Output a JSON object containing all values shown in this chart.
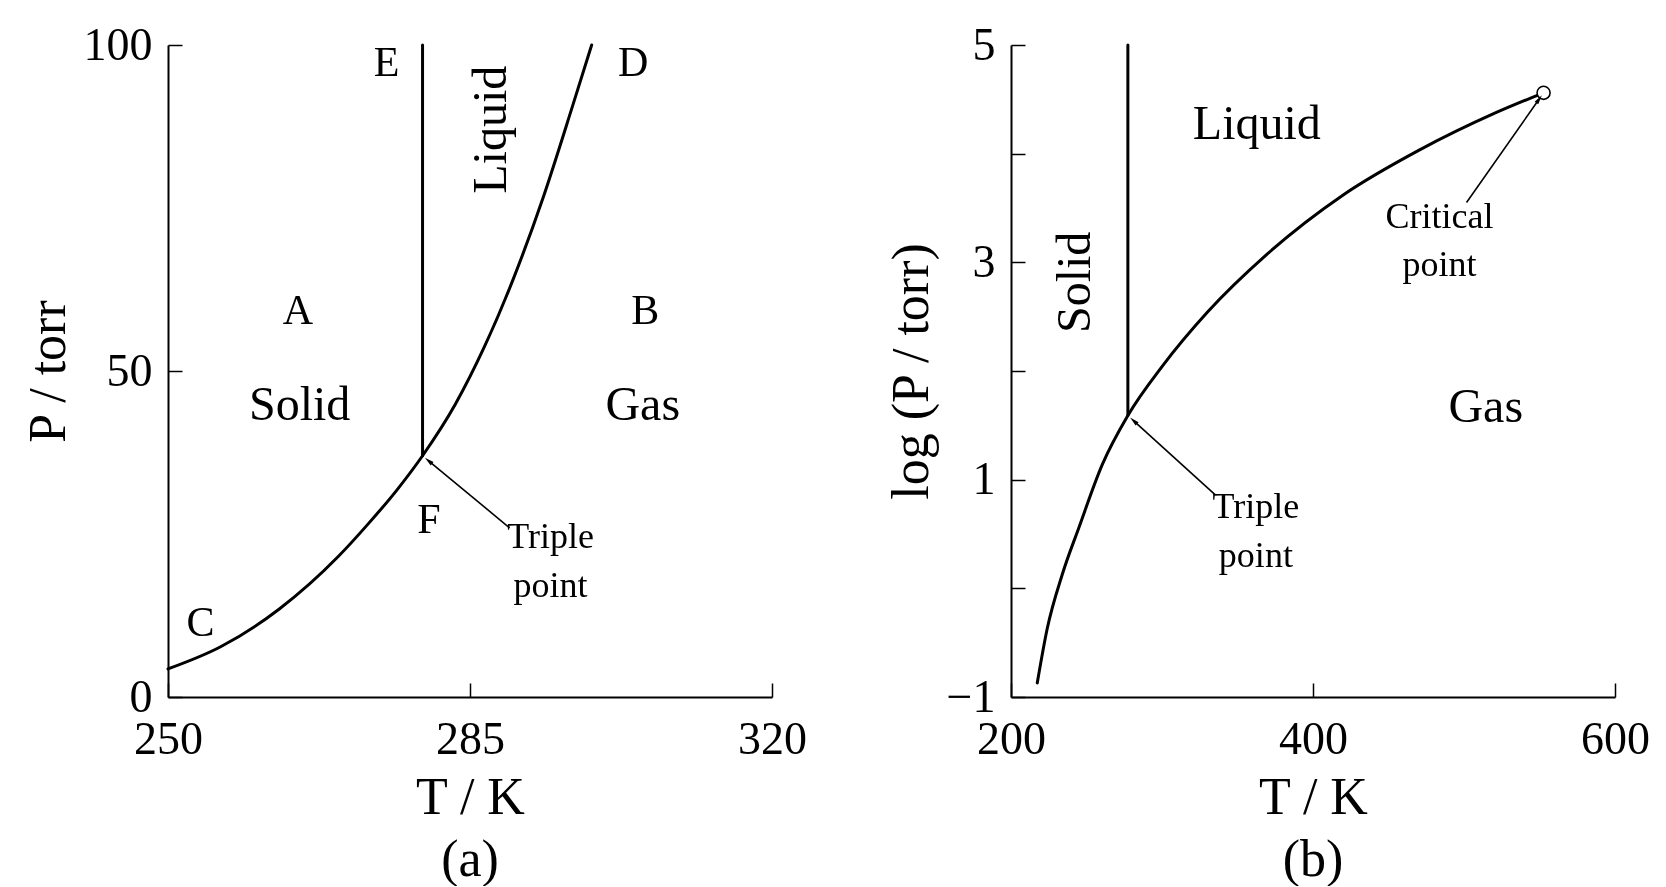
{
  "chart_data": [
    {
      "type": "line",
      "title": "(a)",
      "xlabel": "T / K",
      "ylabel": "P / torr",
      "series": [
        {
          "color": "#000000",
          "x": [
            250,
            256.1,
            262.9,
            269.7,
            273.1,
            276.5,
            279.5,
            283.3,
            286.7,
            290.1,
            293.5,
            296.9,
            299.1
          ],
          "values": [
            4.3,
            7.7,
            13.5,
            21.5,
            26.4,
            31.7,
            37,
            44.9,
            53.8,
            64.4,
            76.7,
            90.7,
            100
          ]
        },
        {
          "color": "#000000",
          "x": [
            279.5,
            279.5
          ],
          "values": [
            37,
            100
          ]
        }
      ],
      "xlim": [
        250,
        320
      ],
      "xticks": [
        250,
        285,
        320
      ],
      "ylim": [
        0,
        100
      ],
      "yticks": [
        0,
        50,
        100
      ],
      "annotations": [
        "E",
        "Liquid",
        "D",
        "A",
        "B",
        "Solid",
        "Gas",
        "F",
        "C",
        {
          "text": "Triple point",
          "x": 279.5,
          "y": 37
        }
      ]
    },
    {
      "type": "line",
      "title": "(b)",
      "xlabel": "T / K",
      "ylabel": "log (P / torr)",
      "series": [
        {
          "color": "#000000",
          "x": [
            217.4,
            224,
            234,
            245,
            260.5,
            277.4,
            300,
            330,
            370,
            420,
            470,
            520,
            552.7
          ],
          "values": [
            -0.87,
            -0.37,
            0.13,
            0.56,
            1.14,
            1.59,
            2.04,
            2.54,
            3.08,
            3.62,
            4.03,
            4.37,
            4.56
          ]
        },
        {
          "color": "#000000",
          "x": [
            277.4,
            277.4
          ],
          "values": [
            1.59,
            5
          ]
        },
        {
          "type": "scatter",
          "color": "#000000",
          "marker": "circle",
          "x": [
            552.7
          ],
          "values": [
            4.56
          ]
        }
      ],
      "xlim": [
        200,
        600
      ],
      "xticks": [
        200,
        400,
        600
      ],
      "ylim": [
        -1,
        5
      ],
      "yticks": [
        -1,
        {
          "value": 0,
          "label": null
        },
        1,
        {
          "value": 2,
          "label": null
        },
        3,
        {
          "value": 4,
          "label": null
        },
        5
      ],
      "annotations": [
        "Liquid",
        "Solid",
        "Gas",
        {
          "text": "Critical point",
          "x": 552.7,
          "y": 4.56
        },
        {
          "text": "Triple point",
          "x": 277.4,
          "y": 1.59
        }
      ]
    }
  ]
}
